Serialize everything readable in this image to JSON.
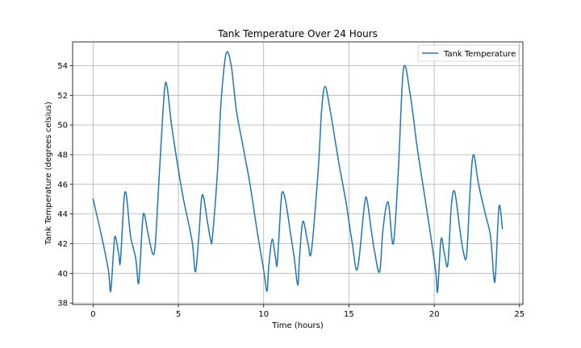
{
  "chart_data": {
    "type": "line",
    "title": "Tank Temperature Over 24 Hours",
    "xlabel": "Time (hours)",
    "ylabel": "Tank Temperature (degrees celsius)",
    "xlim": [
      -1.2,
      25.2
    ],
    "ylim": [
      37.9,
      55.6
    ],
    "xticks": [
      0,
      5,
      10,
      15,
      20,
      25
    ],
    "yticks": [
      38,
      40,
      42,
      44,
      46,
      48,
      50,
      52,
      54
    ],
    "grid": true,
    "legend_position": "upper right",
    "series": [
      {
        "name": "Tank Temperature",
        "color": "#1f77b4",
        "x": [
          0.0,
          0.5,
          0.9,
          1.03,
          1.2,
          1.3,
          1.5,
          1.6,
          1.8,
          1.9,
          2.0,
          2.2,
          2.5,
          2.65,
          2.75,
          2.9,
          3.0,
          3.2,
          3.5,
          3.65,
          3.8,
          4.0,
          4.2,
          4.35,
          4.6,
          5.0,
          5.3,
          5.8,
          6.0,
          6.2,
          6.4,
          6.7,
          6.9,
          7.0,
          7.3,
          7.5,
          7.8,
          8.1,
          8.4,
          8.8,
          9.2,
          9.6,
          10.0,
          10.2,
          10.3,
          10.5,
          10.7,
          10.8,
          11.0,
          11.1,
          11.3,
          11.6,
          11.8,
          12.0,
          12.1,
          12.3,
          12.6,
          12.8,
          13.2,
          13.4,
          13.6,
          13.9,
          14.4,
          14.8,
          15.0,
          15.2,
          15.5,
          15.9,
          16.05,
          16.3,
          16.5,
          16.8,
          17.0,
          17.3,
          17.6,
          17.9,
          18.2,
          18.6,
          19.0,
          19.4,
          19.8,
          20.1,
          20.2,
          20.4,
          20.6,
          20.8,
          21.0,
          21.2,
          21.5,
          21.7,
          21.9,
          22.1,
          22.3,
          22.6,
          23.0,
          23.3,
          23.5,
          23.6,
          23.8,
          24.0
        ],
        "y": [
          45.0,
          42.5,
          40.2,
          38.8,
          41.5,
          42.5,
          41.3,
          40.8,
          44.8,
          45.5,
          44.8,
          42.5,
          41.0,
          39.3,
          40.5,
          43.5,
          44.0,
          42.8,
          41.3,
          42.0,
          45.0,
          49.0,
          52.5,
          52.5,
          50.0,
          47.0,
          45.0,
          42.2,
          40.1,
          42.5,
          45.3,
          43.5,
          42.2,
          42.5,
          47.0,
          51.5,
          54.8,
          54.0,
          51.0,
          48.5,
          46.0,
          43.0,
          40.2,
          38.8,
          40.5,
          42.3,
          41.0,
          40.7,
          44.5,
          45.5,
          44.8,
          42.5,
          41.0,
          39.2,
          41.0,
          43.5,
          42.0,
          41.5,
          47.0,
          51.0,
          52.6,
          51.0,
          47.5,
          45.0,
          43.5,
          42.0,
          40.3,
          44.5,
          45.0,
          43.0,
          41.5,
          40.1,
          43.0,
          44.8,
          42.0,
          47.0,
          53.8,
          52.0,
          48.5,
          45.5,
          42.5,
          40.0,
          38.8,
          42.3,
          41.3,
          40.6,
          44.5,
          45.5,
          43.0,
          41.5,
          41.2,
          45.5,
          48.0,
          46.0,
          44.0,
          42.5,
          39.7,
          40.0,
          44.5,
          43.0
        ]
      }
    ]
  }
}
